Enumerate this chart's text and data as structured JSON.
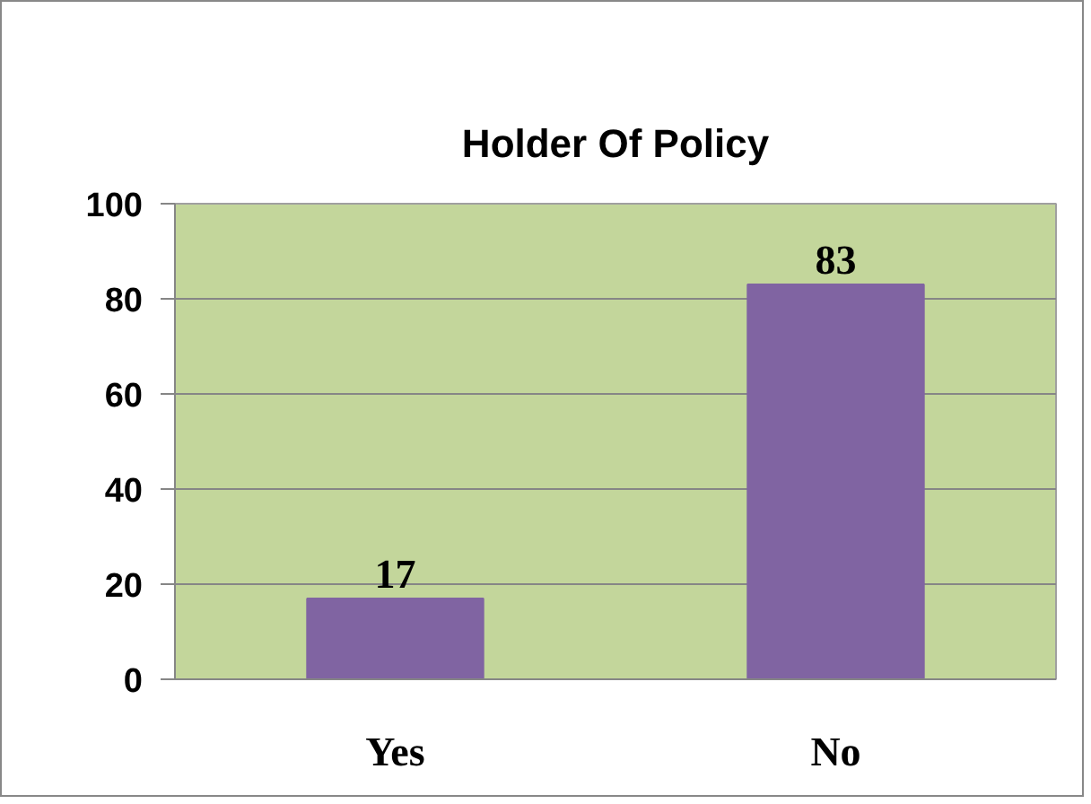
{
  "chart_data": {
    "type": "bar",
    "title": "Holder Of Policy",
    "categories": [
      "Yes",
      "No"
    ],
    "values": [
      17,
      83
    ],
    "color": "#8064a2",
    "ylim": [
      0,
      100
    ],
    "yticks": [
      0,
      20,
      40,
      60,
      80,
      100
    ],
    "grid": "y",
    "data_labels": true
  }
}
